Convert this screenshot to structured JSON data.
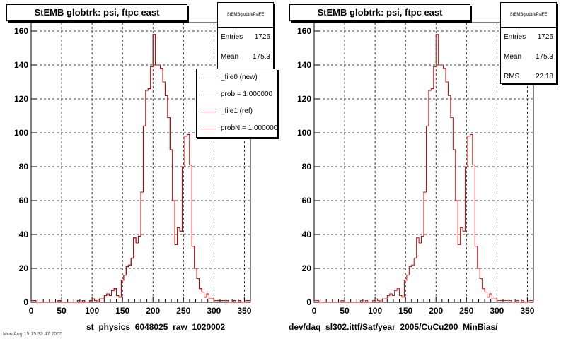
{
  "footer": {
    "date_text": "Mon Aug 15 15:33:47 2005"
  },
  "chart_data": [
    {
      "type": "line",
      "title": "StEMB globtrk: psi, ftpc east",
      "xlabel": "st_physics_6048025_raw_1020002",
      "ylabel": "",
      "xlim": [
        0,
        360
      ],
      "ylim": [
        0,
        165
      ],
      "x_ticks": [
        0,
        50,
        100,
        150,
        200,
        250,
        300,
        350
      ],
      "y_ticks": [
        0,
        20,
        40,
        60,
        80,
        100,
        120,
        140,
        160
      ],
      "grid": true,
      "stats": {
        "name": "StEMBglobtrkPsiFE",
        "rows": [
          {
            "label": "Entries",
            "value": "1726"
          },
          {
            "label": "Mean",
            "value": "175.3"
          }
        ]
      },
      "legend": [
        {
          "label": "_file0 (new)",
          "color": "#000000"
        },
        {
          "label": "prob = 1.000000",
          "color": "#000000"
        },
        {
          "label": "_file1 (ref)",
          "color": "#cc0000"
        },
        {
          "label": "probN = 1.000000",
          "color": "#cc0000"
        }
      ],
      "bin_width": 4,
      "x_start": 0,
      "series": [
        {
          "name": "_file0 (new)",
          "color": "#000000",
          "values": [
            1,
            1,
            0,
            0,
            0,
            0,
            0,
            0,
            0,
            0,
            0,
            1,
            0,
            0,
            0,
            0,
            0,
            0,
            0,
            1,
            0,
            1,
            0,
            0,
            1,
            2,
            1,
            0,
            2,
            2,
            4,
            5,
            4,
            7,
            8,
            4,
            3,
            13,
            16,
            21,
            22,
            26,
            38,
            35,
            39,
            65,
            104,
            125,
            126,
            139,
            158,
            140,
            140,
            138,
            130,
            122,
            109,
            90,
            60,
            34,
            44,
            42,
            80,
            98,
            99,
            81,
            33,
            20,
            14,
            8,
            6,
            3,
            5,
            2,
            2,
            1,
            1,
            1,
            1,
            1,
            1,
            0,
            0,
            1,
            0,
            1,
            0,
            0,
            1,
            1
          ]
        },
        {
          "name": "_file1 (ref)",
          "color": "#cc0000",
          "values": [
            1,
            1,
            0,
            0,
            0,
            0,
            0,
            0,
            0,
            0,
            0,
            1,
            0,
            0,
            0,
            0,
            0,
            0,
            0,
            1,
            0,
            1,
            0,
            0,
            1,
            2,
            1,
            0,
            2,
            2,
            4,
            5,
            4,
            7,
            8,
            4,
            3,
            13,
            16,
            21,
            22,
            26,
            38,
            35,
            39,
            65,
            104,
            125,
            126,
            139,
            158,
            140,
            140,
            138,
            130,
            122,
            109,
            90,
            60,
            34,
            44,
            42,
            80,
            98,
            99,
            81,
            33,
            20,
            14,
            8,
            6,
            3,
            5,
            2,
            2,
            1,
            1,
            1,
            1,
            1,
            1,
            0,
            0,
            1,
            0,
            1,
            0,
            0,
            1,
            1
          ]
        }
      ]
    },
    {
      "type": "line",
      "title": "StEMB globtrk: psi, ftpc east",
      "xlabel": "dev/daq_sl302.ittf/Sat/year_2005/CuCu200_MinBias/",
      "ylabel": "",
      "xlim": [
        0,
        360
      ],
      "ylim": [
        0,
        165
      ],
      "x_ticks": [
        0,
        50,
        100,
        150,
        200,
        250,
        300,
        350
      ],
      "y_ticks": [
        0,
        20,
        40,
        60,
        80,
        100,
        120,
        140,
        160
      ],
      "grid": true,
      "stats": {
        "name": "StEMBglobtrkPsiFE",
        "rows": [
          {
            "label": "Entries",
            "value": "1726"
          },
          {
            "label": "Mean",
            "value": "175.3"
          },
          {
            "label": "RMS",
            "value": "22.18"
          }
        ]
      },
      "bin_width": 4,
      "x_start": 0,
      "series": [
        {
          "color": "#cc0000",
          "values": [
            1,
            1,
            0,
            0,
            0,
            0,
            0,
            0,
            0,
            0,
            0,
            1,
            0,
            0,
            0,
            0,
            0,
            0,
            0,
            1,
            0,
            1,
            0,
            0,
            1,
            2,
            1,
            0,
            2,
            2,
            4,
            5,
            4,
            7,
            8,
            4,
            3,
            13,
            16,
            21,
            22,
            26,
            38,
            35,
            39,
            65,
            104,
            125,
            126,
            139,
            158,
            140,
            140,
            138,
            130,
            122,
            109,
            90,
            60,
            34,
            44,
            42,
            80,
            98,
            99,
            81,
            33,
            20,
            14,
            8,
            6,
            3,
            5,
            2,
            2,
            1,
            1,
            1,
            1,
            1,
            1,
            0,
            0,
            1,
            0,
            1,
            0,
            0,
            1,
            1
          ]
        }
      ]
    }
  ]
}
